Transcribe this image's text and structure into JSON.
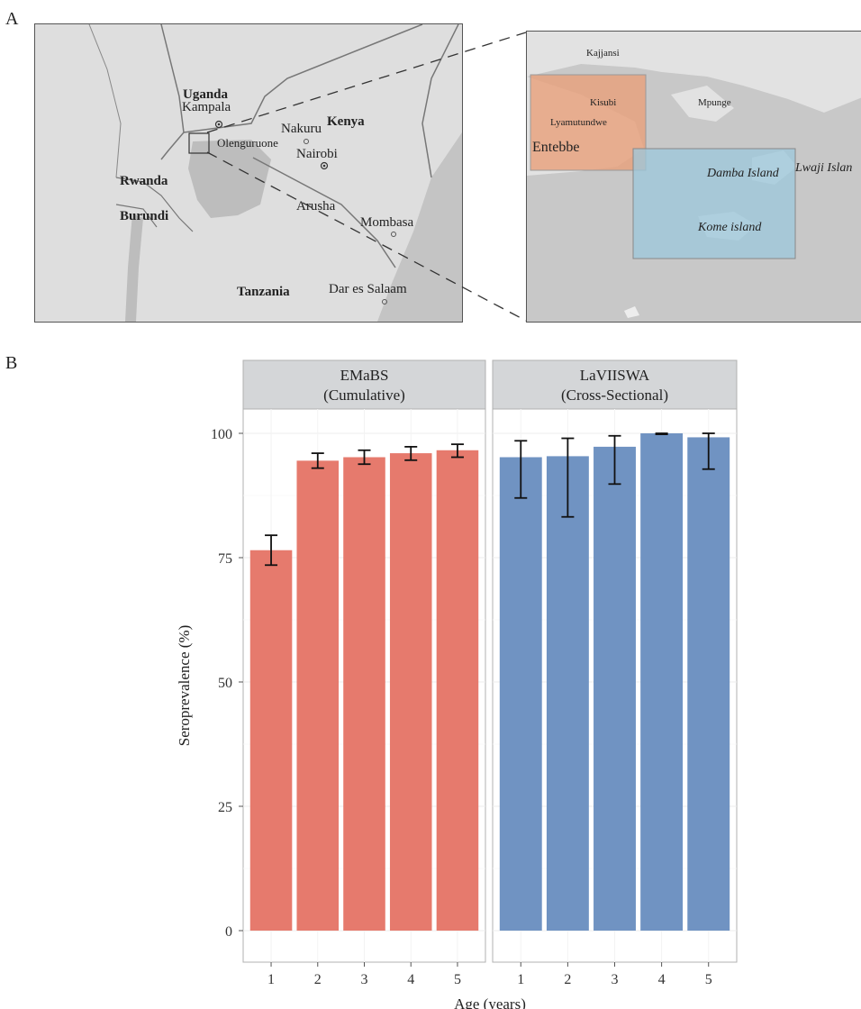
{
  "panels": {
    "a": "A",
    "b": "B"
  },
  "map_main": {
    "countries": {
      "uganda": "Uganda",
      "kenya": "Kenya",
      "rwanda": "Rwanda",
      "burundi": "Burundi",
      "tanzania": "Tanzania"
    },
    "cities": {
      "kampala": "Kampala",
      "nakuru": "Nakuru",
      "olenguruone": "Olenguruone",
      "nairobi": "Nairobi",
      "arusha": "Arusha",
      "mombasa": "Mombasa",
      "dar": "Dar es Salaam"
    }
  },
  "map_inset": {
    "places": {
      "kajjansi": "Kajjansi",
      "kisubi": "Kisubi",
      "lyamutundwe": "Lyamutundwe",
      "mpunge": "Mpunge",
      "entebbe": "Entebbe"
    },
    "islands": {
      "damba": "Damba Island",
      "kome": "Kome island",
      "lwaji": "Lwaji Islan"
    },
    "colors": {
      "entebbe_box": "#e8a07a",
      "island_box": "#9cc8dc"
    }
  },
  "chart_data": {
    "type": "bar",
    "ylabel": "Seroprevalence (%)",
    "xlabel": "Age (years)",
    "ylim": [
      0,
      105
    ],
    "yticks": [
      0,
      25,
      50,
      75,
      100
    ],
    "grid": true,
    "facets": [
      {
        "title_line1": "EMaBS",
        "title_line2": "(Cumulative)",
        "color": "#e67a6d",
        "categories": [
          "1",
          "2",
          "3",
          "4",
          "5"
        ],
        "values": [
          76.5,
          94.5,
          95.2,
          96.0,
          96.6
        ],
        "err_low": [
          73.5,
          93.0,
          93.8,
          94.6,
          95.2
        ],
        "err_high": [
          79.5,
          96.0,
          96.6,
          97.3,
          97.8
        ]
      },
      {
        "title_line1": "LaVIISWA",
        "title_line2": "(Cross-Sectional)",
        "color": "#7093c2",
        "categories": [
          "1",
          "2",
          "3",
          "4",
          "5"
        ],
        "values": [
          95.2,
          95.4,
          97.3,
          100.0,
          99.2
        ],
        "err_low": [
          87.0,
          83.2,
          89.8,
          99.8,
          92.8
        ],
        "err_high": [
          98.5,
          99.0,
          99.5,
          100.0,
          100.0
        ]
      }
    ]
  }
}
